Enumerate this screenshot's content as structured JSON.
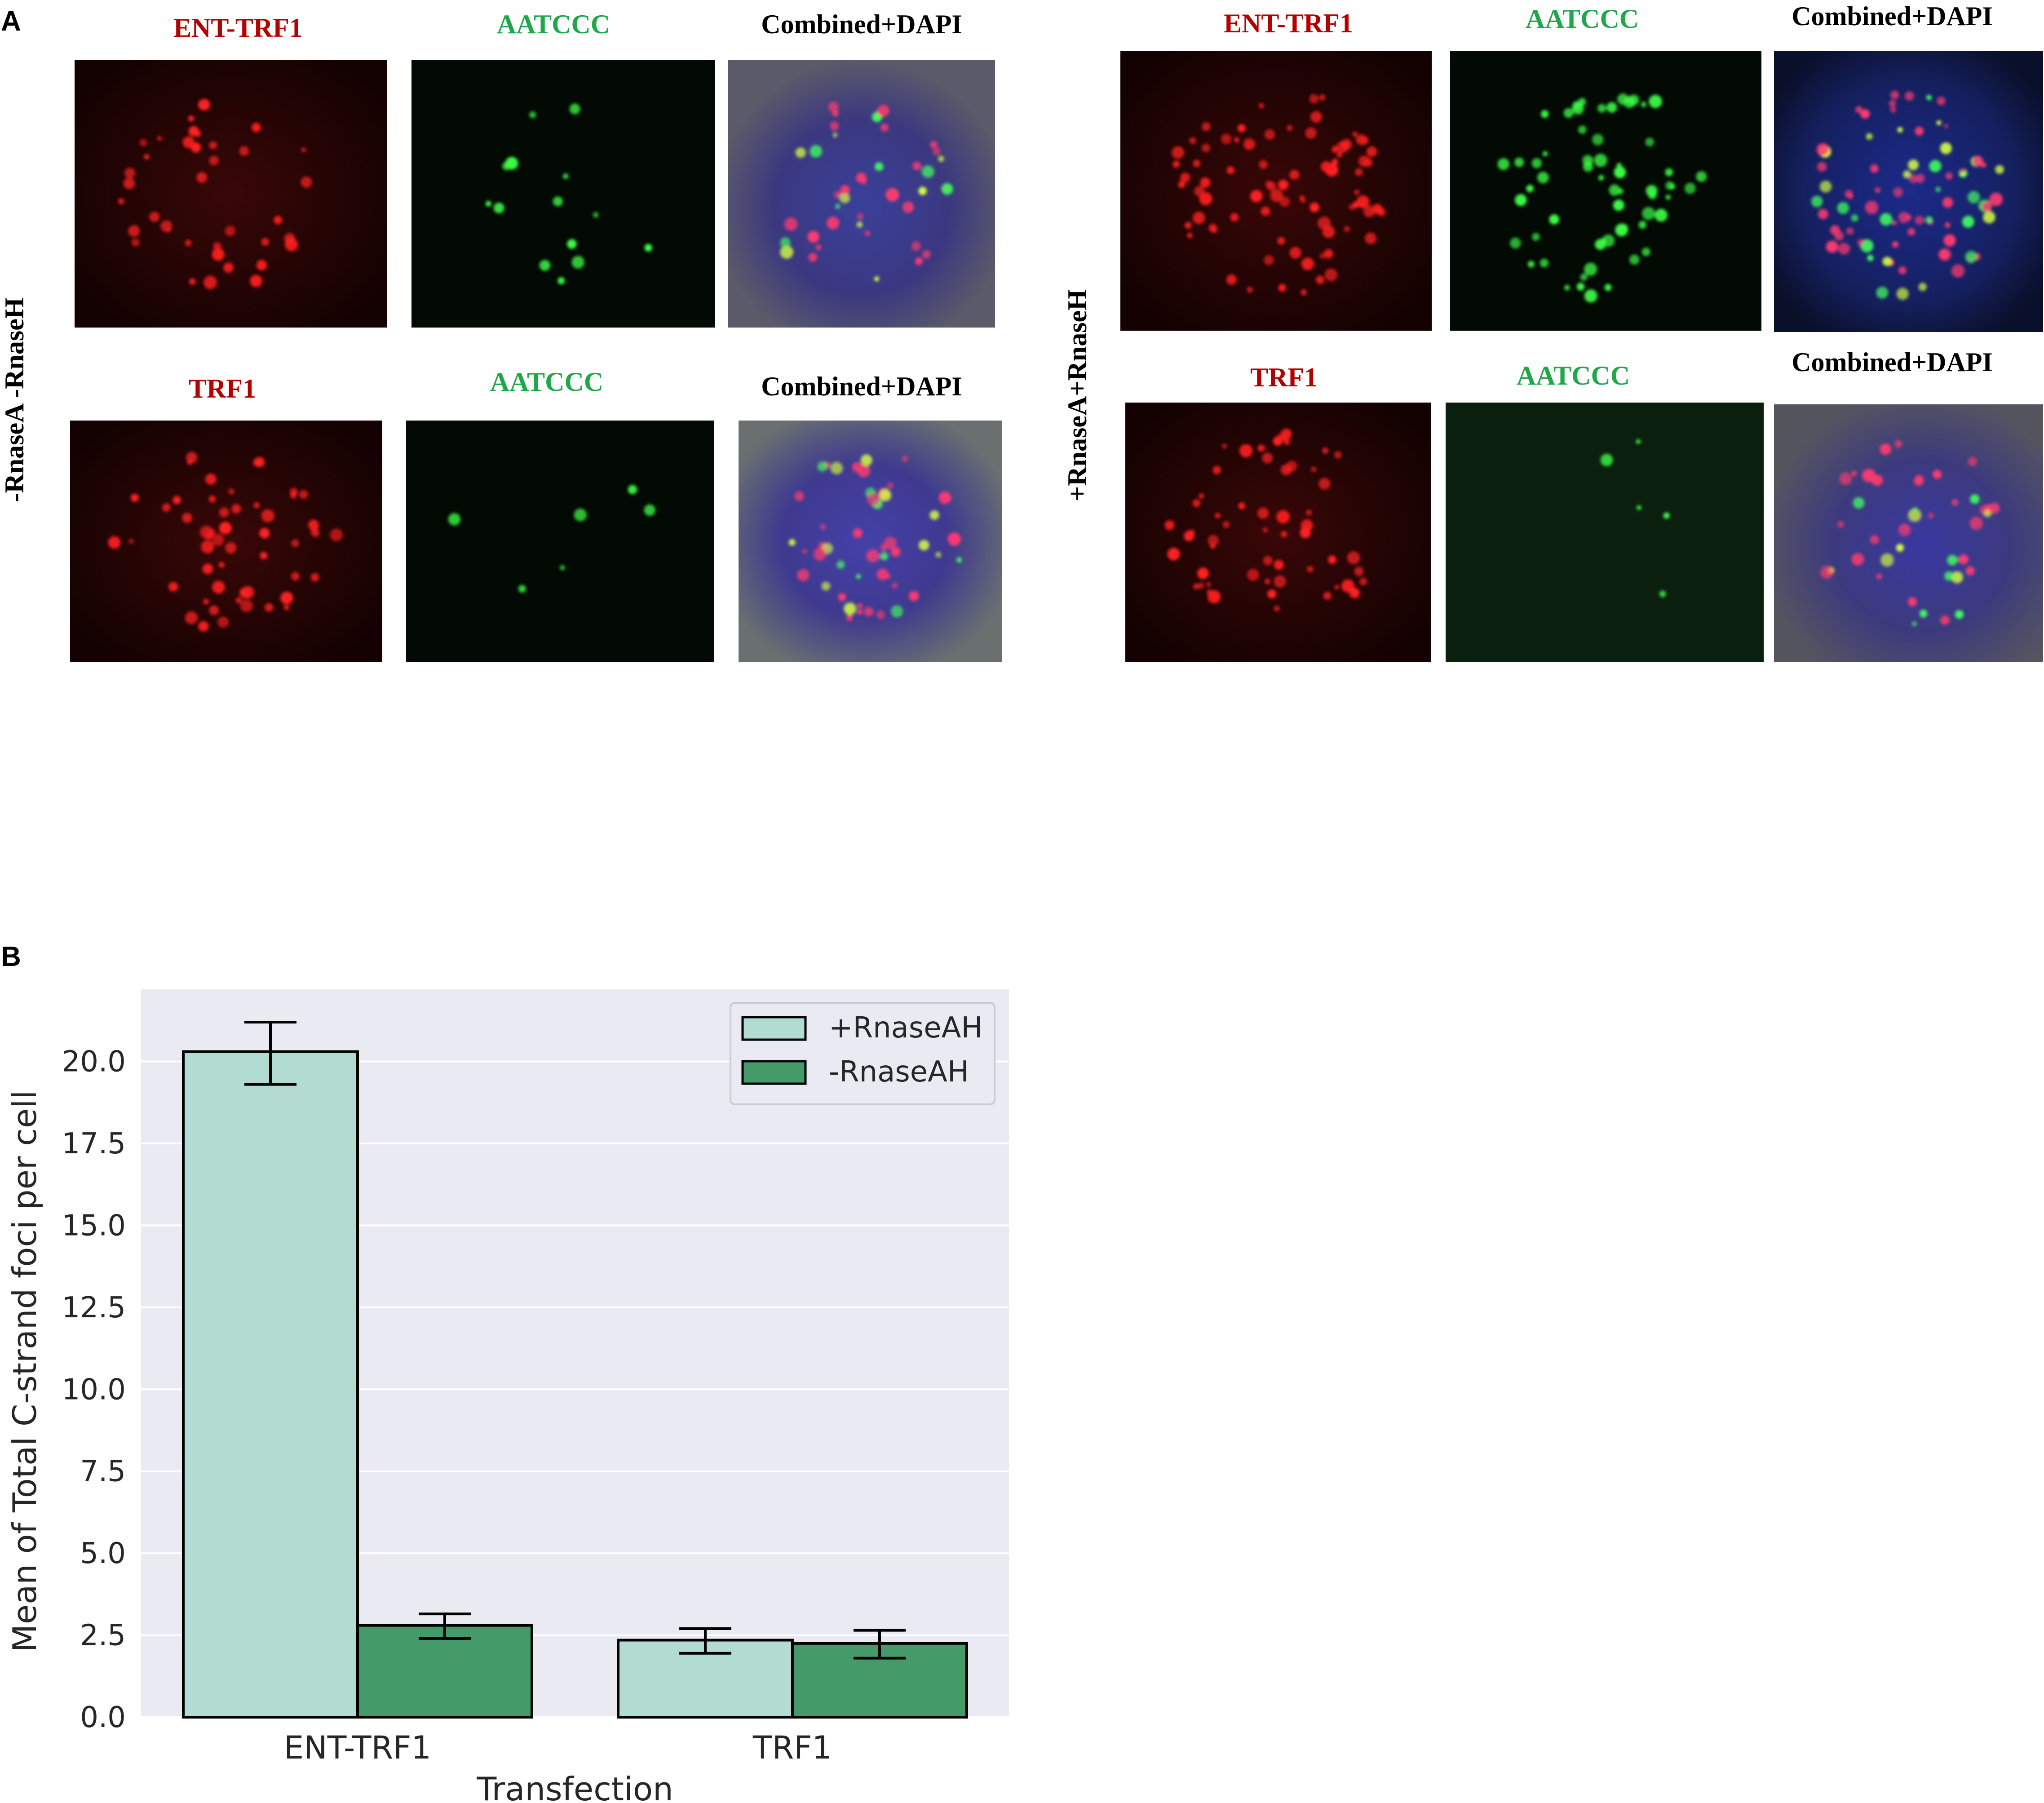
{
  "panel_a": {
    "label": "A",
    "groups": [
      {
        "condition": "-RnaseA -RnaseH",
        "rows": [
          {
            "titles": [
              "ENT-TRF1",
              "AATCCC",
              "Combined+DAPI"
            ]
          },
          {
            "titles": [
              "TRF1",
              "AATCCC",
              "Combined+DAPI"
            ]
          }
        ]
      },
      {
        "condition": "+RnaseA+RnaseH",
        "rows": [
          {
            "titles": [
              "ENT-TRF1",
              "AATCCC",
              "Combined+DAPI"
            ]
          },
          {
            "titles": [
              "TRF1",
              "AATCCC",
              "Combined+DAPI"
            ]
          }
        ]
      }
    ],
    "colors": {
      "red_title": "#b30000",
      "green_title": "#1ea84a",
      "black_title": "#000000"
    }
  },
  "panel_b": {
    "label": "B",
    "chart_data": {
      "type": "bar",
      "categories": [
        "ENT-TRF1",
        "TRF1"
      ],
      "series": [
        {
          "name": "+RnaseAH",
          "values": [
            20.3,
            2.35
          ],
          "err_low": [
            19.3,
            1.95
          ],
          "err_high": [
            21.2,
            2.7
          ],
          "color": "#b2dbd1"
        },
        {
          "name": "-RnaseAH",
          "values": [
            2.8,
            2.25
          ],
          "err_low": [
            2.4,
            1.8
          ],
          "err_high": [
            3.15,
            2.65
          ],
          "color": "#459a6a"
        }
      ],
      "xlabel": "Transfection",
      "ylabel": "Mean of Total C-strand foci per cell",
      "ylim": [
        0,
        22.2
      ],
      "yticks": [
        "0.0",
        "2.5",
        "5.0",
        "7.5",
        "10.0",
        "12.5",
        "15.0",
        "17.5",
        "20.0"
      ],
      "grid": true,
      "legend_position": "top-right",
      "background": "#eaeaf2"
    }
  }
}
